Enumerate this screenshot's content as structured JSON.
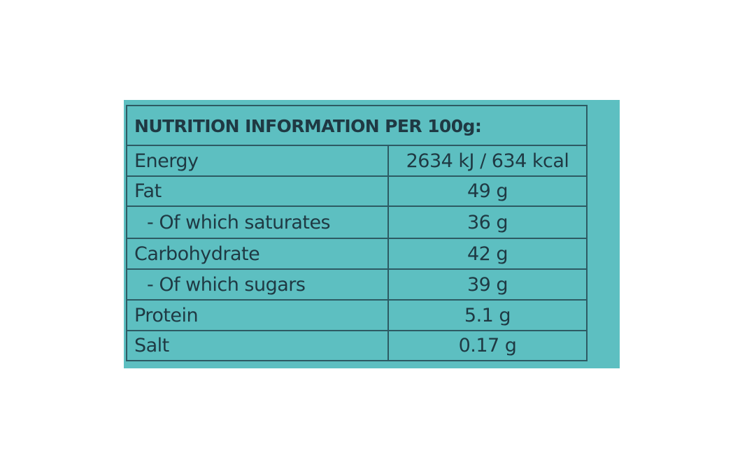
{
  "header": {
    "title": "NUTRITION INFORMATION PER 100g:"
  },
  "table": {
    "rows": [
      [
        "Energy",
        "2634 kJ / 634 kcal"
      ],
      [
        "Fat",
        "49 g"
      ],
      [
        "- Of which saturates",
        "36 g"
      ],
      [
        "Carbohydrate",
        "42 g"
      ],
      [
        "- Of which sugars",
        "39 g"
      ],
      [
        "Protein",
        "5.1 g"
      ],
      [
        "Salt",
        "0.17 g"
      ]
    ]
  }
}
